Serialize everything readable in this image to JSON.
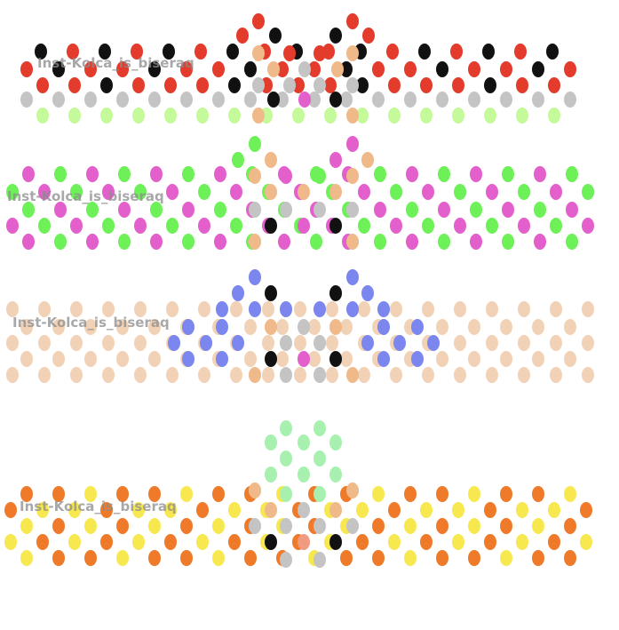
{
  "watermarks": [
    "Inst-Kolca_is_biseraq",
    "Inst-Kolca_is_biseraq",
    "Inst-Kolca_is_biseraq",
    "Inst-Kolca_is_biseraq"
  ],
  "colors": {
    "red": "#e33b2c",
    "black": "#111111",
    "grey": "#c4c4c4",
    "lightgreen": "#c5fa9a",
    "skin": "#f0b98a",
    "pink": "#e35fcc",
    "green": "#6ef058",
    "beige": "#f2d2b6",
    "blue": "#7b86ee",
    "mint": "#a8f0b0",
    "orange": "#ee7a2a",
    "yellow": "#f8e850",
    "salmon": "#f09a80"
  },
  "patterns": [
    {
      "name": "red-black-band",
      "colors": [
        "red",
        "black",
        "grey",
        "lightgreen",
        "skin",
        "pink"
      ]
    },
    {
      "name": "pink-green-band",
      "colors": [
        "pink",
        "green",
        "skin",
        "grey",
        "black"
      ]
    },
    {
      "name": "beige-blue-band",
      "colors": [
        "beige",
        "blue",
        "grey",
        "black",
        "pink",
        "skin"
      ]
    },
    {
      "name": "orange-yellow-band",
      "colors": [
        "orange",
        "yellow",
        "mint",
        "skin",
        "grey",
        "black",
        "salmon"
      ]
    }
  ]
}
